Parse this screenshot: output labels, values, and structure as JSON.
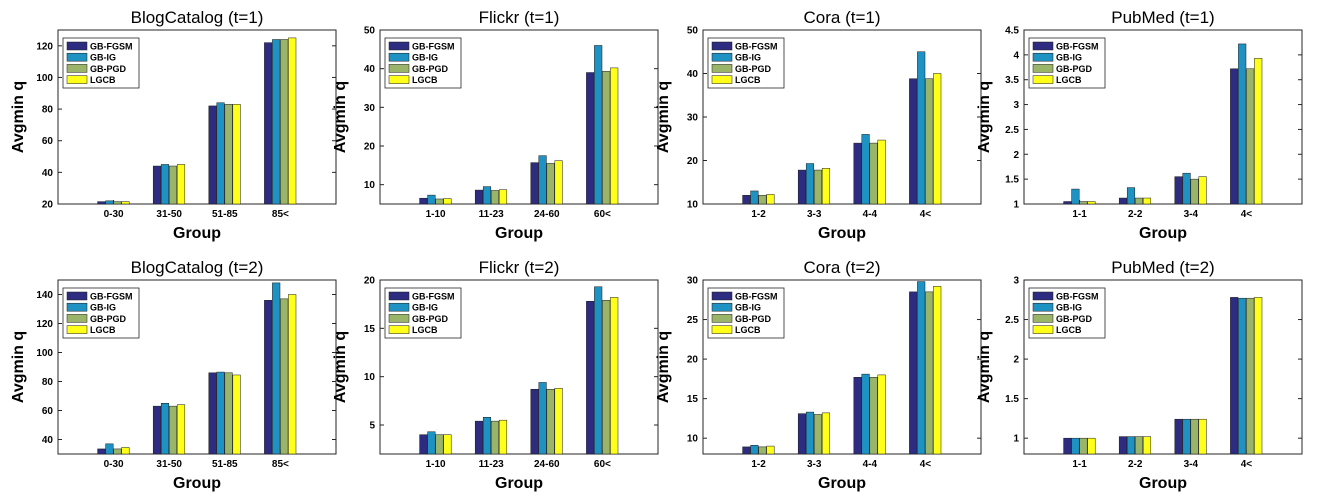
{
  "series_names": [
    "GB-FGSM",
    "GB-IG",
    "GB-PGD",
    "LGCB"
  ],
  "series_colors": [
    "#2e2c80",
    "#1e92c3",
    "#9ab46a",
    "#ffff1a"
  ],
  "chart_data": [
    {
      "type": "bar",
      "title": "BlogCatalog (t=1)",
      "xlabel": "Group",
      "ylabel": "Avgmin q",
      "categories": [
        "0-30",
        "31-50",
        "51-85",
        "85<"
      ],
      "ylim": [
        20,
        130
      ],
      "yticks": [
        20,
        40,
        60,
        80,
        100,
        120
      ],
      "series": [
        {
          "name": "GB-FGSM",
          "values": [
            21.5,
            44,
            82,
            122
          ]
        },
        {
          "name": "GB-IG",
          "values": [
            22,
            45,
            84,
            124
          ]
        },
        {
          "name": "GB-PGD",
          "values": [
            21.5,
            44,
            83,
            124
          ]
        },
        {
          "name": "LGCB",
          "values": [
            21.5,
            45,
            83,
            125
          ]
        }
      ]
    },
    {
      "type": "bar",
      "title": "Flickr (t=1)",
      "xlabel": "Group",
      "ylabel": "Avgmin q",
      "categories": [
        "1-10",
        "11-23",
        "24-60",
        "60<"
      ],
      "ylim": [
        5,
        50
      ],
      "yticks": [
        10,
        20,
        30,
        40,
        50
      ],
      "series": [
        {
          "name": "GB-FGSM",
          "values": [
            6.5,
            8.6,
            15.7,
            39
          ]
        },
        {
          "name": "GB-IG",
          "values": [
            7.3,
            9.5,
            17.5,
            46
          ]
        },
        {
          "name": "GB-PGD",
          "values": [
            6.3,
            8.5,
            15.5,
            39.3
          ]
        },
        {
          "name": "LGCB",
          "values": [
            6.4,
            8.7,
            16.2,
            40.2
          ]
        }
      ]
    },
    {
      "type": "bar",
      "title": "Cora (t=1)",
      "xlabel": "Group",
      "ylabel": "Avgmin q",
      "categories": [
        "1-2",
        "3-3",
        "4-4",
        "4<"
      ],
      "ylim": [
        10,
        50
      ],
      "yticks": [
        10,
        20,
        30,
        40,
        50
      ],
      "series": [
        {
          "name": "GB-FGSM",
          "values": [
            12,
            17.8,
            24,
            38.8
          ]
        },
        {
          "name": "GB-IG",
          "values": [
            13,
            19.3,
            26,
            45
          ]
        },
        {
          "name": "GB-PGD",
          "values": [
            12,
            17.8,
            24,
            38.8
          ]
        },
        {
          "name": "LGCB",
          "values": [
            12.2,
            18.2,
            24.7,
            40
          ]
        }
      ]
    },
    {
      "type": "bar",
      "title": "PubMed (t=1)",
      "xlabel": "Group",
      "ylabel": "Avgmin q",
      "categories": [
        "1-1",
        "2-2",
        "3-4",
        "4<"
      ],
      "ylim": [
        1,
        4.5
      ],
      "yticks": [
        1,
        1.5,
        2,
        2.5,
        3,
        3.5,
        4,
        4.5
      ],
      "series": [
        {
          "name": "GB-FGSM",
          "values": [
            1.05,
            1.12,
            1.55,
            3.72
          ]
        },
        {
          "name": "GB-IG",
          "values": [
            1.3,
            1.33,
            1.62,
            4.22
          ]
        },
        {
          "name": "GB-PGD",
          "values": [
            1.05,
            1.12,
            1.5,
            3.72
          ]
        },
        {
          "name": "LGCB",
          "values": [
            1.05,
            1.12,
            1.55,
            3.93
          ]
        }
      ]
    },
    {
      "type": "bar",
      "title": "BlogCatalog (t=2)",
      "xlabel": "Group",
      "ylabel": "Avgmin q",
      "categories": [
        "0-30",
        "31-50",
        "51-85",
        "85<"
      ],
      "ylim": [
        30,
        150
      ],
      "yticks": [
        40,
        60,
        80,
        100,
        120,
        140
      ],
      "series": [
        {
          "name": "GB-FGSM",
          "values": [
            33.5,
            63,
            86,
            136
          ]
        },
        {
          "name": "GB-IG",
          "values": [
            37,
            65,
            86.5,
            148
          ]
        },
        {
          "name": "GB-PGD",
          "values": [
            33.5,
            63,
            86,
            137
          ]
        },
        {
          "name": "LGCB",
          "values": [
            34.5,
            64,
            84.5,
            140
          ]
        }
      ]
    },
    {
      "type": "bar",
      "title": "Flickr (t=2)",
      "xlabel": "Group",
      "ylabel": "Avgmin q",
      "categories": [
        "1-10",
        "11-23",
        "24-60",
        "60<"
      ],
      "ylim": [
        2,
        20
      ],
      "yticks": [
        5,
        10,
        15,
        20
      ],
      "series": [
        {
          "name": "GB-FGSM",
          "values": [
            4,
            5.4,
            8.7,
            17.8
          ]
        },
        {
          "name": "GB-IG",
          "values": [
            4.3,
            5.8,
            9.4,
            19.3
          ]
        },
        {
          "name": "GB-PGD",
          "values": [
            4,
            5.4,
            8.7,
            17.9
          ]
        },
        {
          "name": "LGCB",
          "values": [
            4,
            5.5,
            8.8,
            18.2
          ]
        }
      ]
    },
    {
      "type": "bar",
      "title": "Cora (t=2)",
      "xlabel": "Group",
      "ylabel": "Avgmin q",
      "categories": [
        "1-2",
        "3-3",
        "4-4",
        "4<"
      ],
      "ylim": [
        8,
        30
      ],
      "yticks": [
        10,
        15,
        20,
        25,
        30
      ],
      "series": [
        {
          "name": "GB-FGSM",
          "values": [
            8.9,
            13.1,
            17.7,
            28.5
          ]
        },
        {
          "name": "GB-IG",
          "values": [
            9.1,
            13.3,
            18.1,
            29.8
          ]
        },
        {
          "name": "GB-PGD",
          "values": [
            8.9,
            13,
            17.7,
            28.5
          ]
        },
        {
          "name": "LGCB",
          "values": [
            9,
            13.2,
            18,
            29.2
          ]
        }
      ]
    },
    {
      "type": "bar",
      "title": "PubMed (t=2)",
      "xlabel": "Group",
      "ylabel": "Avgmin q",
      "categories": [
        "1-1",
        "2-2",
        "3-4",
        "4<"
      ],
      "ylim": [
        0.8,
        3
      ],
      "yticks": [
        1,
        1.5,
        2,
        2.5,
        3
      ],
      "series": [
        {
          "name": "GB-FGSM",
          "values": [
            1,
            1.02,
            1.24,
            2.78
          ]
        },
        {
          "name": "GB-IG",
          "values": [
            1,
            1.02,
            1.24,
            2.77
          ]
        },
        {
          "name": "GB-PGD",
          "values": [
            1,
            1.02,
            1.24,
            2.77
          ]
        },
        {
          "name": "LGCB",
          "values": [
            1,
            1.02,
            1.24,
            2.78
          ]
        }
      ]
    }
  ]
}
